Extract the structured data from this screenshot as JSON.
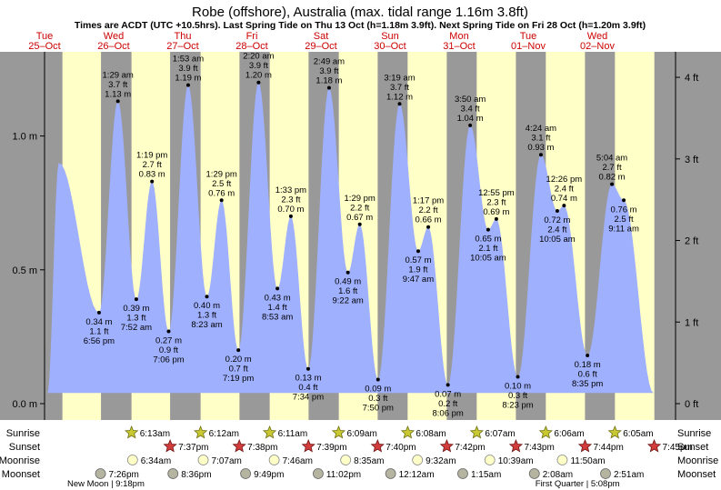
{
  "title": "Robe (offshore), Australia (max. tidal range 1.16m 3.8ft)",
  "subtitle": "Times are ACDT (UTC +10.5hrs). Last Spring Tide on Thu 13 Oct (h=1.18m 3.9ft). Next Spring Tide on Fri 28 Oct (h=1.20m 3.9ft)",
  "colors": {
    "day_bg": "#ffffc8",
    "night_bg": "#999999",
    "water": "#9fb0ff",
    "date_label": "#cc0000",
    "sun_rise": "#c8c832",
    "sun_set": "#d23c3c",
    "moonrise": "#ffffc8",
    "moonset": "#b4b4a0"
  },
  "days": [
    {
      "dow": "Tue",
      "date": "25–Oct"
    },
    {
      "dow": "Wed",
      "date": "26–Oct"
    },
    {
      "dow": "Thu",
      "date": "27–Oct"
    },
    {
      "dow": "Fri",
      "date": "28–Oct"
    },
    {
      "dow": "Sat",
      "date": "29–Oct"
    },
    {
      "dow": "Sun",
      "date": "30–Oct"
    },
    {
      "dow": "Mon",
      "date": "31–Oct"
    },
    {
      "dow": "Tue",
      "date": "01–Nov"
    },
    {
      "dow": "Wed",
      "date": "02–Nov"
    }
  ],
  "chart_data": {
    "type": "area",
    "x_unit": "hours from 00:00 Tue 25 Oct (ACDT)",
    "x_range": [
      0,
      216
    ],
    "ylim_m": [
      0,
      1.25
    ],
    "yticks_m": [
      {
        "v": 0.0,
        "label": "0.0 m"
      },
      {
        "v": 0.5,
        "label": "0.5 m"
      },
      {
        "v": 1.0,
        "label": "1.0 m"
      }
    ],
    "yticks_ft": [
      {
        "v": 0,
        "label": "0 ft"
      },
      {
        "v": 1,
        "label": "1 ft"
      },
      {
        "v": 2,
        "label": "2 ft"
      },
      {
        "v": 3,
        "label": "3 ft"
      },
      {
        "v": 4,
        "label": "4 ft"
      }
    ],
    "curve_start": {
      "x": 1.0,
      "h": 0.04
    },
    "curve_end": {
      "x": 211.5,
      "h": 0.04
    },
    "unlabeled_extremes": [
      {
        "x": 5.0,
        "h": 0.9
      }
    ],
    "tides": [
      {
        "x": 18.93,
        "h": 0.34,
        "m": "0.34 m",
        "ft": "1.1 ft",
        "time": "6:56 pm",
        "type": "low"
      },
      {
        "x": 25.48,
        "h": 1.13,
        "m": "1.13 m",
        "ft": "3.7 ft",
        "time": "1:29 am",
        "type": "high"
      },
      {
        "x": 31.87,
        "h": 0.39,
        "m": "0.39 m",
        "ft": "1.3 ft",
        "time": "7:52 am",
        "type": "low"
      },
      {
        "x": 37.32,
        "h": 0.83,
        "m": "0.83 m",
        "ft": "2.7 ft",
        "time": "1:19 pm",
        "type": "high"
      },
      {
        "x": 43.1,
        "h": 0.27,
        "m": "0.27 m",
        "ft": "0.9 ft",
        "time": "7:06 pm",
        "type": "low"
      },
      {
        "x": 49.88,
        "h": 1.19,
        "m": "1.19 m",
        "ft": "3.9 ft",
        "time": "1:53 am",
        "type": "high"
      },
      {
        "x": 56.38,
        "h": 0.4,
        "m": "0.40 m",
        "ft": "1.3 ft",
        "time": "8:23 am",
        "type": "low"
      },
      {
        "x": 61.48,
        "h": 0.76,
        "m": "0.76 m",
        "ft": "2.5 ft",
        "time": "1:29 pm",
        "type": "high"
      },
      {
        "x": 67.32,
        "h": 0.2,
        "m": "0.20 m",
        "ft": "0.7 ft",
        "time": "7:19 pm",
        "type": "low"
      },
      {
        "x": 74.33,
        "h": 1.2,
        "m": "1.20 m",
        "ft": "3.9 ft",
        "time": "2:20 am",
        "type": "high"
      },
      {
        "x": 80.88,
        "h": 0.43,
        "m": "0.43 m",
        "ft": "1.4 ft",
        "time": "8:53 am",
        "type": "low"
      },
      {
        "x": 85.55,
        "h": 0.7,
        "m": "0.70 m",
        "ft": "2.3 ft",
        "time": "1:33 pm",
        "type": "high"
      },
      {
        "x": 91.57,
        "h": 0.13,
        "m": "0.13 m",
        "ft": "0.4 ft",
        "time": "7:34 pm",
        "type": "low"
      },
      {
        "x": 98.82,
        "h": 1.18,
        "m": "1.18 m",
        "ft": "3.9 ft",
        "time": "2:49 am",
        "type": "high"
      },
      {
        "x": 105.37,
        "h": 0.49,
        "m": "0.49 m",
        "ft": "1.6 ft",
        "time": "9:22 am",
        "type": "low"
      },
      {
        "x": 109.48,
        "h": 0.67,
        "m": "0.67 m",
        "ft": "2.2 ft",
        "time": "1:29 pm",
        "type": "high"
      },
      {
        "x": 115.83,
        "h": 0.09,
        "m": "0.09 m",
        "ft": "0.3 ft",
        "time": "7:50 pm",
        "type": "low"
      },
      {
        "x": 123.32,
        "h": 1.12,
        "m": "1.12 m",
        "ft": "3.7 ft",
        "time": "3:19 am",
        "type": "high"
      },
      {
        "x": 129.78,
        "h": 0.57,
        "m": "0.57 m",
        "ft": "1.9 ft",
        "time": "9:47 am",
        "type": "low"
      },
      {
        "x": 133.28,
        "h": 0.66,
        "m": "0.66 m",
        "ft": "2.2 ft",
        "time": "1:17 pm",
        "type": "high"
      },
      {
        "x": 140.1,
        "h": 0.07,
        "m": "0.07 m",
        "ft": "0.2 ft",
        "time": "8:06 pm",
        "type": "low"
      },
      {
        "x": 147.83,
        "h": 1.04,
        "m": "1.04 m",
        "ft": "3.4 ft",
        "time": "3:50 am",
        "type": "high"
      },
      {
        "x": 154.08,
        "h": 0.65,
        "m": "0.65 m",
        "ft": "2.1 ft",
        "time": "10:05 am",
        "type": "low"
      },
      {
        "x": 156.92,
        "h": 0.69,
        "m": "0.69 m",
        "ft": "2.3 ft",
        "time": "12:55 pm",
        "type": "high"
      },
      {
        "x": 164.38,
        "h": 0.1,
        "m": "0.10 m",
        "ft": "0.3 ft",
        "time": "8:23 pm",
        "type": "low"
      },
      {
        "x": 172.4,
        "h": 0.93,
        "m": "0.93 m",
        "ft": "3.1 ft",
        "time": "4:24 am",
        "type": "high"
      },
      {
        "x": 178.08,
        "h": 0.72,
        "m": "0.72 m",
        "ft": "2.4 ft",
        "time": "10:05 am",
        "type": "low"
      },
      {
        "x": 180.43,
        "h": 0.74,
        "m": "0.74 m",
        "ft": "2.4 ft",
        "time": "12:26 pm",
        "type": "high"
      },
      {
        "x": 188.58,
        "h": 0.18,
        "m": "0.18 m",
        "ft": "0.6 ft",
        "time": "8:35 pm",
        "type": "low"
      },
      {
        "x": 197.07,
        "h": 0.82,
        "m": "0.82 m",
        "ft": "2.7 ft",
        "time": "5:04 am",
        "type": "high"
      },
      {
        "x": 201.18,
        "h": 0.76,
        "m": "0.76 m",
        "ft": "2.5 ft",
        "time": "9:11 am",
        "type": "low"
      }
    ]
  },
  "nights": [
    [
      0,
      6.2
    ],
    [
      19.6,
      30.2
    ],
    [
      43.6,
      54.2
    ],
    [
      67.7,
      78.2
    ],
    [
      91.7,
      102.2
    ],
    [
      115.7,
      126.1
    ],
    [
      139.7,
      150.1
    ],
    [
      163.7,
      174.1
    ],
    [
      187.7,
      198.1
    ],
    [
      211.8,
      216
    ]
  ],
  "astro_rows": [
    {
      "label": "Sunrise",
      "kind": "sunrise",
      "events": [
        {
          "x": 30.22,
          "time": "6:13am"
        },
        {
          "x": 54.2,
          "time": "6:12am"
        },
        {
          "x": 78.18,
          "time": "6:11am"
        },
        {
          "x": 102.15,
          "time": "6:09am"
        },
        {
          "x": 126.13,
          "time": "6:08am"
        },
        {
          "x": 150.12,
          "time": "6:07am"
        },
        {
          "x": 174.1,
          "time": "6:06am"
        },
        {
          "x": 198.08,
          "time": "6:05am"
        }
      ]
    },
    {
      "label": "Sunset",
      "kind": "sunset",
      "events": [
        {
          "x": 43.62,
          "time": "7:37pm"
        },
        {
          "x": 67.63,
          "time": "7:38pm"
        },
        {
          "x": 91.65,
          "time": "7:39pm"
        },
        {
          "x": 115.67,
          "time": "7:40pm"
        },
        {
          "x": 139.7,
          "time": "7:42pm"
        },
        {
          "x": 163.72,
          "time": "7:43pm"
        },
        {
          "x": 187.73,
          "time": "7:44pm"
        },
        {
          "x": 211.75,
          "time": "7:45pm"
        }
      ]
    },
    {
      "label": "Moonrise",
      "kind": "moonrise",
      "events": [
        {
          "x": 30.57,
          "time": "6:34am"
        },
        {
          "x": 55.12,
          "time": "7:07am"
        },
        {
          "x": 79.77,
          "time": "7:46am"
        },
        {
          "x": 104.58,
          "time": "8:35am"
        },
        {
          "x": 129.53,
          "time": "9:32am"
        },
        {
          "x": 154.65,
          "time": "10:39am"
        },
        {
          "x": 179.83,
          "time": "11:50am"
        }
      ]
    },
    {
      "label": "Moonset",
      "kind": "moonset",
      "events": [
        {
          "x": 19.43,
          "time": "7:26pm"
        },
        {
          "x": 44.6,
          "time": "8:36pm"
        },
        {
          "x": 69.82,
          "time": "9:49pm"
        },
        {
          "x": 95.03,
          "time": "11:02pm"
        },
        {
          "x": 120.2,
          "time": "12:12am"
        },
        {
          "x": 145.25,
          "time": "1:15am"
        },
        {
          "x": 170.13,
          "time": "2:08am"
        },
        {
          "x": 194.85,
          "time": "2:51am"
        }
      ]
    }
  ],
  "moon_phases": [
    {
      "x": 21.3,
      "label": "New Moon | 9:18pm"
    },
    {
      "x": 185.1,
      "label": "First Quarter | 5:08pm"
    }
  ]
}
